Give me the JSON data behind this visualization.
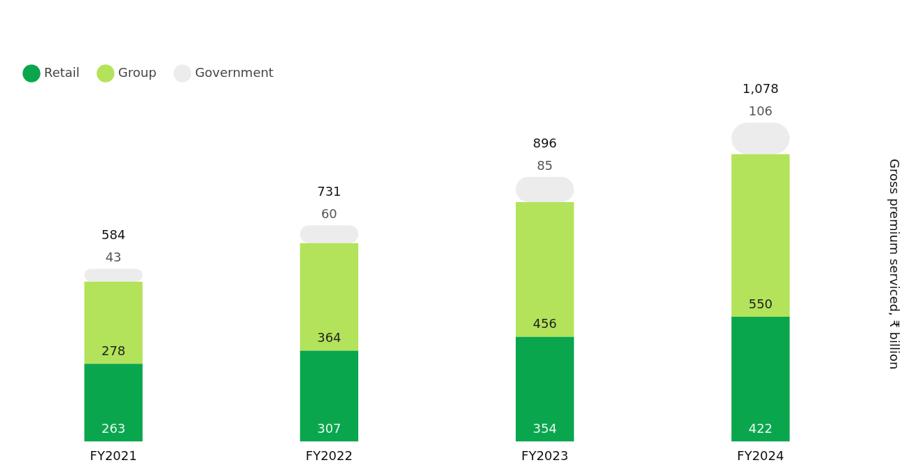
{
  "chart_data": {
    "type": "bar",
    "stacked": true,
    "ylabel": "Gross premium serviced, ₹ billion",
    "categories": [
      "FY2021",
      "FY2022",
      "FY2023",
      "FY2024"
    ],
    "series": [
      {
        "name": "Retail",
        "color": "#0aa64e",
        "values": [
          263,
          307,
          354,
          422
        ]
      },
      {
        "name": "Group",
        "color": "#b3e35a",
        "values": [
          278,
          364,
          456,
          550
        ]
      },
      {
        "name": "Government",
        "color": "#ececec",
        "values": [
          43,
          60,
          85,
          106
        ]
      }
    ],
    "data_labels": true,
    "totals": [
      "584",
      "731",
      "896",
      "1,078"
    ],
    "legend": "top left",
    "grid": false
  }
}
